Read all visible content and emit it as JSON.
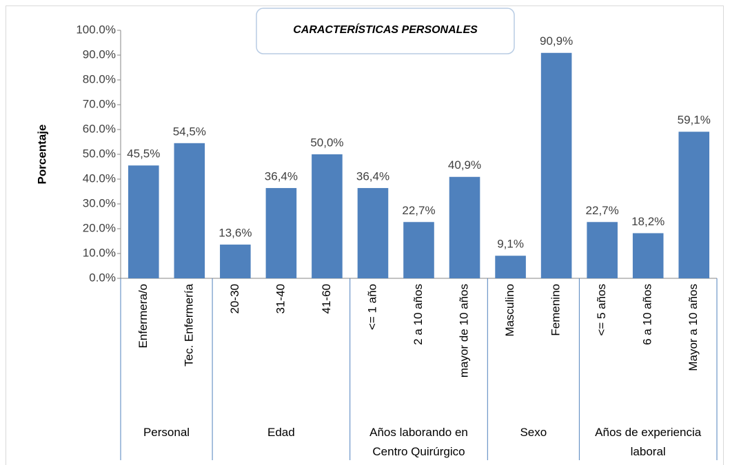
{
  "chart_data": {
    "type": "bar",
    "title": "CARACTERÍSTICAS PERSONALES",
    "y_label": "Porcentaje",
    "color": "#4f81bd",
    "ylim": [
      0,
      100
    ],
    "yticks": [
      {
        "value": 0,
        "label": "0.0%"
      },
      {
        "value": 10,
        "label": "10.0%"
      },
      {
        "value": 20,
        "label": "20.0%"
      },
      {
        "value": 30,
        "label": "30.0%"
      },
      {
        "value": 40,
        "label": "40.0%"
      },
      {
        "value": 50,
        "label": "50.0%"
      },
      {
        "value": 60,
        "label": "60.0%"
      },
      {
        "value": 70,
        "label": "70.0%"
      },
      {
        "value": 80,
        "label": "80.0%"
      },
      {
        "value": 90,
        "label": "90.0%"
      },
      {
        "value": 100,
        "label": "100.0%"
      }
    ],
    "groups": [
      {
        "name": "Personal",
        "categories": [
          "Enfermera/o",
          "Tec. Enfermería"
        ],
        "values": [
          45.5,
          54.5
        ],
        "value_labels": [
          "45,5%",
          "54,5%"
        ]
      },
      {
        "name": "Edad",
        "categories": [
          "20-30",
          "31-40",
          "41-60"
        ],
        "values": [
          13.6,
          36.4,
          50.0
        ],
        "value_labels": [
          "13,6%",
          "36,4%",
          "50,0%"
        ]
      },
      {
        "name": "Años laborando en Centro Quirúrgico",
        "categories": [
          "<= 1 año",
          "2 a 10 años",
          "mayor de 10 años"
        ],
        "values": [
          36.4,
          22.7,
          40.9
        ],
        "value_labels": [
          "36,4%",
          "22,7%",
          "40,9%"
        ]
      },
      {
        "name": "Sexo",
        "categories": [
          "Masculino",
          "Femenino"
        ],
        "values": [
          9.1,
          90.9
        ],
        "value_labels": [
          "9,1%",
          "90,9%"
        ]
      },
      {
        "name": "Años de experiencia laboral",
        "categories": [
          "<= 5 años",
          "6 a 10 años",
          "Mayor a 10 años"
        ],
        "values": [
          22.7,
          18.2,
          59.1
        ],
        "value_labels": [
          "22,7%",
          "18,2%",
          "59,1%"
        ]
      }
    ]
  }
}
